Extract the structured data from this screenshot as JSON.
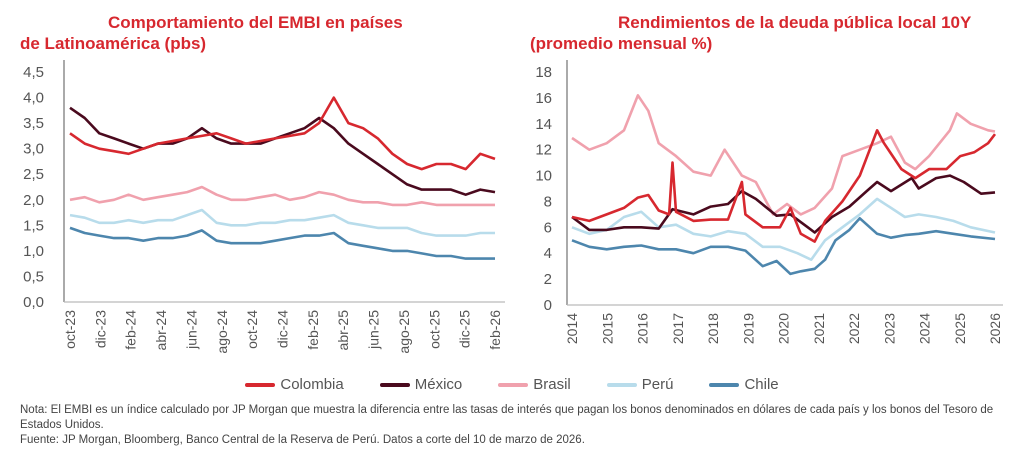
{
  "left_title": {
    "line1": "Comportamiento del EMBI en países",
    "line2": "de Latinoamérica (pbs)"
  },
  "right_title": {
    "line1": "Rendimientos de la deuda pública local 10Y",
    "line2": "(promedio mensual %)"
  },
  "legend": [
    {
      "label": "Colombia",
      "color": "#d7282f"
    },
    {
      "label": "México",
      "color": "#4a0a1e"
    },
    {
      "label": "Brasil",
      "color": "#f0a1ad"
    },
    {
      "label": "Perú",
      "color": "#b8dceb"
    },
    {
      "label": "Chile",
      "color": "#4d86ad"
    }
  ],
  "notes": {
    "nota": "Nota: El EMBI es un índice calculado por JP Morgan que muestra la diferencia entre las tasas de interés que pagan los bonos denominados en dólares de cada país y los bonos del Tesoro de Estados Unidos.",
    "fuente": "Fuente: JP Morgan, Bloomberg, Banco Central de la Reserva de Perú. Datos a corte del 10 de marzo de 2026."
  },
  "chart_data": [
    {
      "type": "line",
      "title": "Comportamiento del EMBI en países de Latinoamérica (pbs)",
      "xlabel": "",
      "ylabel": "",
      "ylim": [
        0,
        4.5
      ],
      "yticks": [
        "0,0",
        "0,5",
        "1,0",
        "1,5",
        "2,0",
        "2,5",
        "3,0",
        "3,5",
        "4,0",
        "4,5"
      ],
      "xticks": [
        "oct-23",
        "dic-23",
        "feb-24",
        "abr-24",
        "jun-24",
        "ago-24",
        "oct-24",
        "dic-24",
        "feb-25",
        "abr-25",
        "jun-25",
        "ago-25",
        "oct-25",
        "dic-25",
        "feb-26"
      ],
      "x_unit": "months since oct-23",
      "xlim": [
        0,
        29
      ],
      "series": [
        {
          "name": "Colombia",
          "color": "#d7282f",
          "values": [
            3.3,
            3.1,
            3.0,
            2.95,
            2.9,
            3.0,
            3.1,
            3.15,
            3.2,
            3.25,
            3.3,
            3.2,
            3.1,
            3.15,
            3.2,
            3.25,
            3.3,
            3.5,
            4.0,
            3.5,
            3.4,
            3.2,
            2.9,
            2.7,
            2.6,
            2.7,
            2.7,
            2.6,
            2.9,
            2.8
          ]
        },
        {
          "name": "México",
          "color": "#4a0a1e",
          "values": [
            3.8,
            3.6,
            3.3,
            3.2,
            3.1,
            3.0,
            3.1,
            3.1,
            3.2,
            3.4,
            3.2,
            3.1,
            3.1,
            3.1,
            3.2,
            3.3,
            3.4,
            3.6,
            3.4,
            3.1,
            2.9,
            2.7,
            2.5,
            2.3,
            2.2,
            2.2,
            2.2,
            2.1,
            2.2,
            2.15
          ]
        },
        {
          "name": "Brasil",
          "color": "#f0a1ad",
          "values": [
            2.0,
            2.05,
            1.95,
            2.0,
            2.1,
            2.0,
            2.05,
            2.1,
            2.15,
            2.25,
            2.1,
            2.0,
            2.0,
            2.05,
            2.1,
            2.0,
            2.05,
            2.15,
            2.1,
            2.0,
            1.95,
            1.95,
            1.9,
            1.9,
            1.95,
            1.9,
            1.9,
            1.9,
            1.9,
            1.9
          ]
        },
        {
          "name": "Perú",
          "color": "#b8dceb",
          "values": [
            1.7,
            1.65,
            1.55,
            1.55,
            1.6,
            1.55,
            1.6,
            1.6,
            1.7,
            1.8,
            1.55,
            1.5,
            1.5,
            1.55,
            1.55,
            1.6,
            1.6,
            1.65,
            1.7,
            1.55,
            1.5,
            1.45,
            1.45,
            1.45,
            1.35,
            1.3,
            1.3,
            1.3,
            1.35,
            1.35
          ]
        },
        {
          "name": "Chile",
          "color": "#4d86ad",
          "values": [
            1.45,
            1.35,
            1.3,
            1.25,
            1.25,
            1.2,
            1.25,
            1.25,
            1.3,
            1.4,
            1.2,
            1.15,
            1.15,
            1.15,
            1.2,
            1.25,
            1.3,
            1.3,
            1.35,
            1.15,
            1.1,
            1.05,
            1.0,
            1.0,
            0.95,
            0.9,
            0.9,
            0.85,
            0.85,
            0.85
          ]
        }
      ]
    },
    {
      "type": "line",
      "title": "Rendimientos de la deuda pública local 10Y (promedio mensual %)",
      "xlabel": "",
      "ylabel": "",
      "ylim": [
        0,
        18
      ],
      "xlim": [
        2014,
        2026.2
      ],
      "yticks": [
        "0",
        "2",
        "4",
        "6",
        "8",
        "10",
        "12",
        "14",
        "16",
        "18"
      ],
      "xticks": [
        "2014",
        "2015",
        "2016",
        "2017",
        "2018",
        "2019",
        "2020",
        "2021",
        "2022",
        "2023",
        "2024",
        "2025",
        "2026"
      ],
      "series": [
        {
          "name": "Colombia",
          "color": "#d7282f",
          "points": [
            [
              2014,
              6.8
            ],
            [
              2014.5,
              6.5
            ],
            [
              2015,
              7.0
            ],
            [
              2015.5,
              7.5
            ],
            [
              2015.9,
              8.3
            ],
            [
              2016.2,
              8.5
            ],
            [
              2016.5,
              7.3
            ],
            [
              2016.8,
              7.0
            ],
            [
              2016.9,
              11.0
            ],
            [
              2017,
              7.2
            ],
            [
              2017.5,
              6.5
            ],
            [
              2018,
              6.6
            ],
            [
              2018.5,
              6.6
            ],
            [
              2018.9,
              9.5
            ],
            [
              2019,
              7.0
            ],
            [
              2019.5,
              6.0
            ],
            [
              2020,
              6.0
            ],
            [
              2020.3,
              7.5
            ],
            [
              2020.6,
              5.5
            ],
            [
              2021,
              4.9
            ],
            [
              2021.3,
              6.5
            ],
            [
              2021.8,
              8.0
            ],
            [
              2022.3,
              10.0
            ],
            [
              2022.8,
              13.5
            ],
            [
              2023,
              12.5
            ],
            [
              2023.5,
              10.5
            ],
            [
              2023.9,
              9.8
            ],
            [
              2024.3,
              10.5
            ],
            [
              2024.8,
              10.5
            ],
            [
              2025.2,
              11.5
            ],
            [
              2025.6,
              11.8
            ],
            [
              2026,
              12.5
            ],
            [
              2026.2,
              13.2
            ]
          ]
        },
        {
          "name": "México",
          "color": "#4a0a1e",
          "points": [
            [
              2014,
              6.8
            ],
            [
              2014.5,
              5.8
            ],
            [
              2015,
              5.8
            ],
            [
              2015.5,
              6.0
            ],
            [
              2016,
              6.0
            ],
            [
              2016.5,
              5.9
            ],
            [
              2016.9,
              7.4
            ],
            [
              2017.5,
              7.0
            ],
            [
              2018,
              7.6
            ],
            [
              2018.5,
              7.8
            ],
            [
              2018.9,
              8.8
            ],
            [
              2019.3,
              8.2
            ],
            [
              2019.9,
              6.9
            ],
            [
              2020.3,
              7.0
            ],
            [
              2020.8,
              6.0
            ],
            [
              2021,
              5.6
            ],
            [
              2021.5,
              6.8
            ],
            [
              2022,
              7.6
            ],
            [
              2022.5,
              8.8
            ],
            [
              2022.8,
              9.5
            ],
            [
              2023.2,
              8.8
            ],
            [
              2023.8,
              9.8
            ],
            [
              2024,
              9.0
            ],
            [
              2024.5,
              9.8
            ],
            [
              2024.9,
              10.0
            ],
            [
              2025.3,
              9.5
            ],
            [
              2025.8,
              8.6
            ],
            [
              2026.2,
              8.7
            ]
          ]
        },
        {
          "name": "Brasil",
          "color": "#f0a1ad",
          "points": [
            [
              2014,
              12.9
            ],
            [
              2014.5,
              12.0
            ],
            [
              2015,
              12.5
            ],
            [
              2015.5,
              13.5
            ],
            [
              2015.9,
              16.2
            ],
            [
              2016.2,
              15.0
            ],
            [
              2016.5,
              12.5
            ],
            [
              2017,
              11.5
            ],
            [
              2017.5,
              10.3
            ],
            [
              2018,
              10.0
            ],
            [
              2018.4,
              12.0
            ],
            [
              2018.9,
              10.0
            ],
            [
              2019.3,
              9.5
            ],
            [
              2019.8,
              7.0
            ],
            [
              2020.2,
              7.8
            ],
            [
              2020.6,
              7.0
            ],
            [
              2021,
              7.5
            ],
            [
              2021.5,
              9.0
            ],
            [
              2021.8,
              11.5
            ],
            [
              2022.3,
              12.0
            ],
            [
              2022.8,
              12.5
            ],
            [
              2023.2,
              13.0
            ],
            [
              2023.6,
              11.0
            ],
            [
              2023.9,
              10.5
            ],
            [
              2024.3,
              11.5
            ],
            [
              2024.9,
              13.5
            ],
            [
              2025.1,
              14.8
            ],
            [
              2025.5,
              14.0
            ],
            [
              2026,
              13.5
            ],
            [
              2026.2,
              13.4
            ]
          ]
        },
        {
          "name": "Perú",
          "color": "#b8dceb",
          "points": [
            [
              2014,
              6.0
            ],
            [
              2014.5,
              5.5
            ],
            [
              2015,
              5.8
            ],
            [
              2015.5,
              6.8
            ],
            [
              2016,
              7.2
            ],
            [
              2016.5,
              6.0
            ],
            [
              2017,
              6.2
            ],
            [
              2017.5,
              5.5
            ],
            [
              2018,
              5.3
            ],
            [
              2018.5,
              5.7
            ],
            [
              2019,
              5.5
            ],
            [
              2019.5,
              4.5
            ],
            [
              2020,
              4.5
            ],
            [
              2020.5,
              4.0
            ],
            [
              2020.9,
              3.5
            ],
            [
              2021.3,
              5.0
            ],
            [
              2021.8,
              6.0
            ],
            [
              2022.3,
              7.0
            ],
            [
              2022.8,
              8.2
            ],
            [
              2023.2,
              7.5
            ],
            [
              2023.6,
              6.8
            ],
            [
              2024,
              7.0
            ],
            [
              2024.5,
              6.8
            ],
            [
              2025,
              6.5
            ],
            [
              2025.5,
              6.0
            ],
            [
              2026.2,
              5.6
            ]
          ]
        },
        {
          "name": "Chile",
          "color": "#4d86ad",
          "points": [
            [
              2014,
              5.0
            ],
            [
              2014.5,
              4.5
            ],
            [
              2015,
              4.3
            ],
            [
              2015.5,
              4.5
            ],
            [
              2016,
              4.6
            ],
            [
              2016.5,
              4.3
            ],
            [
              2017,
              4.3
            ],
            [
              2017.5,
              4.0
            ],
            [
              2018,
              4.5
            ],
            [
              2018.5,
              4.5
            ],
            [
              2019,
              4.2
            ],
            [
              2019.5,
              3.0
            ],
            [
              2019.9,
              3.4
            ],
            [
              2020.3,
              2.4
            ],
            [
              2020.6,
              2.6
            ],
            [
              2021,
              2.8
            ],
            [
              2021.3,
              3.5
            ],
            [
              2021.6,
              5.0
            ],
            [
              2022,
              5.8
            ],
            [
              2022.3,
              6.7
            ],
            [
              2022.8,
              5.5
            ],
            [
              2023.2,
              5.2
            ],
            [
              2023.6,
              5.4
            ],
            [
              2024,
              5.5
            ],
            [
              2024.5,
              5.7
            ],
            [
              2025,
              5.5
            ],
            [
              2025.5,
              5.3
            ],
            [
              2026.2,
              5.1
            ]
          ]
        }
      ]
    }
  ]
}
